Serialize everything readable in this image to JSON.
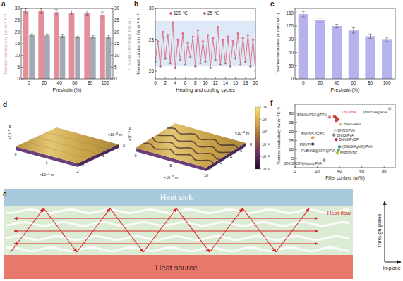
{
  "chart_data": [
    {
      "type": "bar",
      "title": "a",
      "categories": [
        "0",
        "20",
        "40",
        "60",
        "80",
        "100"
      ],
      "x_label": "Prestrain (%)",
      "y_label": "Thermal conductivity (W m⁻¹ K⁻¹)",
      "y2_label": "Thermal diffusivity (mm² s⁻¹)",
      "ylim": [
        0,
        30
      ],
      "yticks": [
        0,
        5,
        10,
        15,
        20,
        25,
        30
      ],
      "y2lim": [
        0,
        30
      ],
      "y2ticks": [
        0,
        5,
        10,
        15,
        20,
        25,
        30
      ],
      "series": [
        {
          "color": "#e48e99",
          "values": [
            28.9,
            28.8,
            28.4,
            28.1,
            27.9,
            27.2
          ],
          "errors": [
            1.0,
            1.0,
            1.1,
            0.9,
            1.0,
            1.3
          ]
        },
        {
          "color": "#a3aab5",
          "axis": "y2",
          "values": [
            18.6,
            18.5,
            18.3,
            18.1,
            18.0,
            17.8
          ],
          "errors": [
            0.6,
            0.6,
            0.7,
            0.6,
            0.5,
            0.8
          ]
        }
      ]
    },
    {
      "type": "line",
      "title": "b",
      "x_label": "Heating and cooling cycles",
      "y_label": "Thermal conductivity (W m⁻¹ K⁻¹)",
      "xlim": [
        0,
        20
      ],
      "xticks": [
        0,
        2,
        4,
        6,
        8,
        10,
        12,
        14,
        16,
        18,
        20
      ],
      "ylim": [
        25.5,
        30
      ],
      "yticks": [
        26,
        28,
        30
      ],
      "band": [
        26.3,
        29.2
      ],
      "legend": "top",
      "series": [
        {
          "name": "120 ℃",
          "color": "#e06a80",
          "marker": "circle",
          "x": [
            0.5,
            1.5,
            2.5,
            3.5,
            4.5,
            5.5,
            6.5,
            7.5,
            8.5,
            9.5,
            10.5,
            11.5,
            12.5,
            13.5,
            14.5,
            15.5,
            16.5,
            17.5,
            18.5,
            19.5
          ],
          "values": [
            27.9,
            28.5,
            28.3,
            29.1,
            28.0,
            28.4,
            27.8,
            28.2,
            28.6,
            27.9,
            28.3,
            28.1,
            28.8,
            28.0,
            28.2,
            27.9,
            28.4,
            28.1,
            28.3,
            28.0
          ]
        },
        {
          "name": "25 ℃",
          "color": "#9b7b93",
          "marker": "circle",
          "x": [
            0,
            1,
            2,
            3,
            4,
            5,
            6,
            7,
            8,
            9,
            10,
            11,
            12,
            13,
            14,
            15,
            16,
            17,
            18,
            19,
            20
          ],
          "values": [
            26.6,
            26.3,
            26.8,
            26.5,
            26.2,
            26.7,
            26.4,
            26.9,
            26.3,
            26.5,
            26.6,
            26.2,
            26.7,
            26.4,
            26.5,
            26.3,
            26.8,
            26.4,
            26.6,
            26.3,
            26.0
          ]
        }
      ]
    },
    {
      "type": "bar",
      "title": "c",
      "categories": [
        "0",
        "20",
        "40",
        "60",
        "80",
        "100"
      ],
      "x_label": "Prestrain (%)",
      "y_label": "Thermal resistance (K mm² W⁻¹)",
      "ylim": [
        0,
        160
      ],
      "yticks": [
        0,
        30,
        60,
        90,
        120,
        150
      ],
      "series": [
        {
          "color": "#b5b2ec",
          "values": [
            147,
            133,
            120,
            110,
            97,
            89
          ],
          "errors": [
            6,
            5,
            4,
            6,
            5,
            4
          ]
        }
      ]
    },
    {
      "type": "scatter",
      "title": "f",
      "x_label": "Filler content (wt%)",
      "y_label": "Thermal conductivity (W m⁻¹ K⁻¹)",
      "xlim": [
        0,
        90
      ],
      "xticks": [
        0,
        20,
        40,
        60,
        80
      ],
      "ylim": [
        0,
        35
      ],
      "yticks": [
        5,
        10,
        15,
        20,
        25,
        30
      ],
      "series": [
        {
          "name": "(BNNS/Ag)/PVA",
          "color": "#c8c8c8",
          "x": [
            85
          ],
          "values": [
            32.5
          ]
        },
        {
          "name": "This work",
          "color": "#e0342c",
          "x": [
            35.5,
            36.5,
            37.5,
            38.5,
            37
          ],
          "values": [
            28.2,
            27.6,
            27.1,
            26.6,
            26.0
          ]
        },
        {
          "name": "BNNSs/PEG@TPU",
          "color": "#d98a8a",
          "x": [
            31
          ],
          "values": [
            27.8
          ]
        },
        {
          "name": "BNNS/PAN",
          "color": "#e8c77a",
          "x": [
            41
          ],
          "values": [
            24
          ]
        },
        {
          "name": "BNNS/PVA",
          "color": "#eeeeee",
          "x": [
            36
          ],
          "values": [
            20.5
          ]
        },
        {
          "name": "BNNS/PVA",
          "color": "#7f8c9a",
          "x": [
            35
          ],
          "values": [
            18
          ]
        },
        {
          "name": "BNNS/PVDF",
          "color": "#d93030",
          "x": [
            37
          ],
          "values": [
            15.5
          ]
        },
        {
          "name": "BNNS/S-SEBS",
          "color": "#f0a040",
          "x": [
            16
          ],
          "values": [
            16.5
          ]
        },
        {
          "name": "FBN/PI",
          "color": "#1f3f80",
          "x": [
            16
          ],
          "values": [
            13
          ]
        },
        {
          "name": "(BNNS/AgNW)/PVA",
          "color": "#3aa0a0",
          "x": [
            40
          ],
          "values": [
            11.5
          ]
        },
        {
          "name": "FVBNNS@CNT@PVA",
          "color": "#50b050",
          "x": [
            39
          ],
          "values": [
            9.5
          ]
        },
        {
          "name": "BNP/PVDF",
          "color": "#c0d040",
          "x": [
            38
          ],
          "values": [
            8
          ]
        },
        {
          "name": "(BNNS/CNTs)/epoxy/PVA",
          "color": "#9090c0",
          "x": [
            26
          ],
          "values": [
            4
          ]
        }
      ]
    }
  ],
  "images": {
    "title": "d",
    "panels": [
      {
        "depth_unit": "×10⁻⁶ m",
        "x_unit": "×10⁻⁵ m",
        "x_ticks": [
          "0",
          "1",
          "2"
        ],
        "y_unit": "×10⁻⁵ m",
        "y_ticks": [
          "0",
          "1",
          "2"
        ]
      },
      {
        "depth_unit": "×10⁻⁶ m",
        "x_unit": "×10⁻⁵ m",
        "x_ticks": [
          "0",
          "5",
          "10"
        ],
        "y_unit": "×10⁻⁵ m",
        "y_ticks": [
          "0",
          "2",
          "4",
          "6",
          "8"
        ]
      }
    ],
    "colorbar_labels": [
      "10²",
      "10¹",
      "10⁰",
      "10⁻¹",
      "10⁻²",
      "10⁻³"
    ]
  },
  "diagram": {
    "title": "e",
    "heat_sink": "Heat sink",
    "heat_source": "Heat source",
    "heat_flow": "Heat flow",
    "through_plane": "Through-plane",
    "in_plane": "In-plane"
  }
}
